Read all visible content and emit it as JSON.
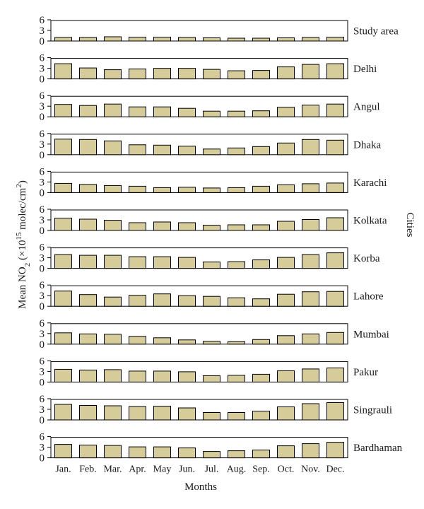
{
  "chart_data": {
    "type": "bar",
    "layout": "small-multiples",
    "xlabel": "Months",
    "ylabel": "Mean NO2 (×10^15 molec/cm^2)",
    "ylabel_parts": {
      "pre": "Mean NO",
      "sub": "2",
      "mid": " (×10",
      "sup1": "15",
      "post": " molec/cm",
      "sup2": "2",
      "end": ")"
    },
    "right_label": "Cities",
    "ylim": [
      0,
      6
    ],
    "yticks": [
      0,
      3,
      6
    ],
    "bar_color": "#d5cc9a",
    "categories": [
      "Jan.",
      "Feb.",
      "Mar.",
      "Apr.",
      "May",
      "Jun.",
      "Jul.",
      "Aug.",
      "Sep.",
      "Oct.",
      "Nov.",
      "Dec."
    ],
    "series": [
      {
        "name": "Study area",
        "values": [
          1.0,
          1.0,
          1.2,
          1.1,
          1.1,
          1.0,
          0.9,
          0.8,
          0.8,
          0.9,
          1.0,
          1.1
        ]
      },
      {
        "name": "Delhi",
        "values": [
          4.3,
          3.1,
          2.6,
          2.8,
          3.0,
          3.0,
          2.7,
          2.3,
          2.4,
          3.4,
          4.1,
          4.3
        ]
      },
      {
        "name": "Angul",
        "values": [
          3.5,
          3.2,
          3.6,
          2.8,
          2.8,
          2.4,
          1.6,
          1.6,
          1.7,
          2.7,
          3.3,
          3.6
        ]
      },
      {
        "name": "Dhaka",
        "values": [
          4.4,
          4.3,
          3.9,
          2.8,
          2.7,
          2.4,
          1.6,
          1.9,
          2.3,
          3.3,
          4.3,
          4.1
        ]
      },
      {
        "name": "Karachi",
        "values": [
          2.6,
          2.3,
          2.0,
          1.8,
          1.4,
          1.5,
          1.3,
          1.4,
          1.8,
          2.2,
          2.5,
          2.7
        ]
      },
      {
        "name": "Kolkata",
        "values": [
          3.5,
          3.2,
          2.9,
          2.2,
          2.4,
          2.2,
          1.5,
          1.6,
          1.6,
          2.6,
          3.1,
          3.6
        ]
      },
      {
        "name": "Korba",
        "values": [
          3.9,
          3.7,
          3.7,
          3.3,
          3.3,
          3.1,
          1.8,
          1.9,
          2.4,
          3.1,
          3.9,
          4.4
        ]
      },
      {
        "name": "Lahore",
        "values": [
          4.3,
          3.3,
          2.6,
          3.1,
          3.5,
          3.0,
          2.8,
          2.4,
          2.1,
          3.4,
          4.1,
          4.2
        ]
      },
      {
        "name": "Mumbai",
        "values": [
          3.2,
          2.9,
          2.8,
          2.2,
          1.8,
          1.2,
          0.8,
          0.7,
          1.3,
          2.4,
          2.9,
          3.3
        ]
      },
      {
        "name": "Pakur",
        "values": [
          3.6,
          3.4,
          3.5,
          3.1,
          3.1,
          2.9,
          1.8,
          1.9,
          2.2,
          3.2,
          3.7,
          4.0
        ]
      },
      {
        "name": "Singrauli",
        "values": [
          4.4,
          4.1,
          4.0,
          3.8,
          3.9,
          3.4,
          2.1,
          2.1,
          2.5,
          3.7,
          4.6,
          4.9
        ]
      },
      {
        "name": "Bardhaman",
        "values": [
          3.8,
          3.6,
          3.5,
          3.1,
          3.1,
          2.8,
          1.8,
          2.0,
          2.2,
          3.4,
          4.0,
          4.4
        ]
      }
    ]
  }
}
